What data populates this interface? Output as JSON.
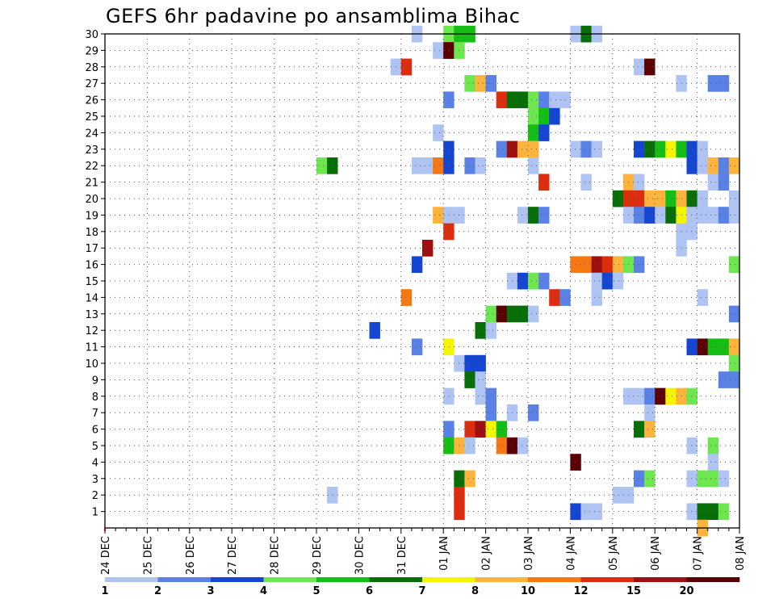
{
  "title": "GEFS 6hr padavine po ansamblima Bihac",
  "chart_data": {
    "type": "heatmap",
    "title": "GEFS 6hr padavine po ansamblima Bihac",
    "x_tick_labels": [
      "24 DEC",
      "25 DEC",
      "26 DEC",
      "27 DEC",
      "28 DEC",
      "29 DEC",
      "30 DEC",
      "31 DEC",
      "01 JAN",
      "02 JAN",
      "03 JAN",
      "04 JAN",
      "05 JAN",
      "06 JAN",
      "07 JAN",
      "08 JAN"
    ],
    "x_step_hours": 6,
    "x_range_steps": [
      0,
      60
    ],
    "y_tick_labels": [
      "1",
      "2",
      "3",
      "4",
      "5",
      "6",
      "7",
      "8",
      "9",
      "10",
      "11",
      "12",
      "13",
      "14",
      "15",
      "16",
      "17",
      "18",
      "19",
      "20",
      "21",
      "22",
      "23",
      "24",
      "25",
      "26",
      "27",
      "28",
      "29",
      "30"
    ],
    "y_range": [
      0,
      30
    ],
    "grid": true,
    "colorbar": {
      "labels": [
        "1",
        "2",
        "3",
        "4",
        "5",
        "6",
        "7",
        "8",
        "10",
        "12",
        "15",
        "20"
      ],
      "colors": [
        "#b0c4f4",
        "#5a82e6",
        "#1446d2",
        "#6ee650",
        "#14be14",
        "#086e08",
        "#f5f500",
        "#fcb43c",
        "#f57814",
        "#dc2e0f",
        "#a00f0f",
        "#5a0000"
      ]
    },
    "cells": [
      [
        29,
        30,
        1
      ],
      [
        32,
        30,
        4
      ],
      [
        33,
        30,
        5
      ],
      [
        34,
        30,
        5
      ],
      [
        44,
        30,
        1
      ],
      [
        45,
        30,
        6
      ],
      [
        46,
        30,
        1
      ],
      [
        31,
        29,
        1
      ],
      [
        32,
        29,
        12
      ],
      [
        33,
        29,
        4
      ],
      [
        27,
        28,
        1
      ],
      [
        28,
        28,
        10
      ],
      [
        50,
        28,
        1
      ],
      [
        51,
        28,
        12
      ],
      [
        34,
        27,
        4
      ],
      [
        35,
        27,
        8
      ],
      [
        36,
        27,
        2
      ],
      [
        54,
        27,
        1
      ],
      [
        57,
        27,
        2
      ],
      [
        58,
        27,
        2
      ],
      [
        32,
        26,
        2
      ],
      [
        37,
        26,
        10
      ],
      [
        38,
        26,
        6
      ],
      [
        39,
        26,
        6
      ],
      [
        40,
        26,
        4
      ],
      [
        41,
        26,
        2
      ],
      [
        42,
        26,
        1
      ],
      [
        43,
        26,
        1
      ],
      [
        40,
        25,
        4
      ],
      [
        41,
        25,
        5
      ],
      [
        42,
        25,
        3
      ],
      [
        40,
        24,
        5
      ],
      [
        41,
        24,
        3
      ],
      [
        31,
        24,
        1
      ],
      [
        32,
        23,
        3
      ],
      [
        37,
        23,
        2
      ],
      [
        38,
        23,
        11
      ],
      [
        39,
        23,
        8
      ],
      [
        40,
        23,
        8
      ],
      [
        44,
        23,
        1
      ],
      [
        45,
        23,
        2
      ],
      [
        46,
        23,
        1
      ],
      [
        50,
        23,
        3
      ],
      [
        51,
        23,
        6
      ],
      [
        52,
        23,
        5
      ],
      [
        53,
        23,
        7
      ],
      [
        54,
        23,
        5
      ],
      [
        55,
        23,
        3
      ],
      [
        56,
        23,
        1
      ],
      [
        20,
        22,
        4
      ],
      [
        21,
        22,
        6
      ],
      [
        29,
        22,
        1
      ],
      [
        30,
        22,
        1
      ],
      [
        31,
        22,
        9
      ],
      [
        32,
        22,
        3
      ],
      [
        34,
        22,
        2
      ],
      [
        35,
        22,
        1
      ],
      [
        40,
        22,
        1
      ],
      [
        55,
        22,
        3
      ],
      [
        56,
        22,
        1
      ],
      [
        57,
        22,
        8
      ],
      [
        58,
        22,
        2
      ],
      [
        59,
        22,
        8
      ],
      [
        41,
        21,
        10
      ],
      [
        45,
        21,
        1
      ],
      [
        49,
        21,
        8
      ],
      [
        50,
        21,
        1
      ],
      [
        57,
        21,
        1
      ],
      [
        58,
        21,
        2
      ],
      [
        48,
        20,
        6
      ],
      [
        49,
        20,
        10
      ],
      [
        50,
        20,
        10
      ],
      [
        51,
        20,
        8
      ],
      [
        52,
        20,
        8
      ],
      [
        53,
        20,
        5
      ],
      [
        54,
        20,
        8
      ],
      [
        55,
        20,
        6
      ],
      [
        56,
        20,
        1
      ],
      [
        59,
        20,
        1
      ],
      [
        31,
        19,
        8
      ],
      [
        32,
        19,
        1
      ],
      [
        33,
        19,
        1
      ],
      [
        39,
        19,
        1
      ],
      [
        40,
        19,
        6
      ],
      [
        41,
        19,
        2
      ],
      [
        49,
        19,
        1
      ],
      [
        50,
        19,
        2
      ],
      [
        51,
        19,
        3
      ],
      [
        52,
        19,
        1
      ],
      [
        53,
        19,
        6
      ],
      [
        54,
        19,
        7
      ],
      [
        55,
        19,
        1
      ],
      [
        56,
        19,
        1
      ],
      [
        57,
        19,
        1
      ],
      [
        58,
        19,
        2
      ],
      [
        59,
        19,
        1
      ],
      [
        32,
        18,
        10
      ],
      [
        54,
        18,
        1
      ],
      [
        55,
        18,
        1
      ],
      [
        30,
        17,
        11
      ],
      [
        54,
        17,
        1
      ],
      [
        29,
        16,
        3
      ],
      [
        44,
        16,
        9
      ],
      [
        45,
        16,
        9
      ],
      [
        46,
        16,
        11
      ],
      [
        47,
        16,
        10
      ],
      [
        48,
        16,
        8
      ],
      [
        49,
        16,
        4
      ],
      [
        50,
        16,
        2
      ],
      [
        59,
        16,
        4
      ],
      [
        38,
        15,
        1
      ],
      [
        39,
        15,
        3
      ],
      [
        40,
        15,
        4
      ],
      [
        41,
        15,
        2
      ],
      [
        46,
        15,
        1
      ],
      [
        47,
        15,
        3
      ],
      [
        48,
        15,
        1
      ],
      [
        28,
        14,
        9
      ],
      [
        42,
        14,
        10
      ],
      [
        43,
        14,
        2
      ],
      [
        46,
        14,
        1
      ],
      [
        56,
        14,
        1
      ],
      [
        36,
        13,
        4
      ],
      [
        37,
        13,
        12
      ],
      [
        38,
        13,
        6
      ],
      [
        39,
        13,
        6
      ],
      [
        40,
        13,
        1
      ],
      [
        59,
        13,
        2
      ],
      [
        25,
        12,
        3
      ],
      [
        35,
        12,
        6
      ],
      [
        36,
        12,
        1
      ],
      [
        29,
        11,
        2
      ],
      [
        32,
        11,
        7
      ],
      [
        55,
        11,
        3
      ],
      [
        56,
        11,
        12
      ],
      [
        57,
        11,
        5
      ],
      [
        58,
        11,
        5
      ],
      [
        59,
        11,
        8
      ],
      [
        33,
        10,
        1
      ],
      [
        34,
        10,
        3
      ],
      [
        35,
        10,
        3
      ],
      [
        59,
        10,
        4
      ],
      [
        34,
        9,
        6
      ],
      [
        35,
        9,
        1
      ],
      [
        58,
        9,
        2
      ],
      [
        59,
        9,
        2
      ],
      [
        32,
        8,
        1
      ],
      [
        35,
        8,
        1
      ],
      [
        36,
        8,
        2
      ],
      [
        49,
        8,
        1
      ],
      [
        50,
        8,
        1
      ],
      [
        51,
        8,
        2
      ],
      [
        52,
        8,
        12
      ],
      [
        53,
        8,
        7
      ],
      [
        54,
        8,
        8
      ],
      [
        55,
        8,
        4
      ],
      [
        36,
        7,
        2
      ],
      [
        38,
        7,
        1
      ],
      [
        40,
        7,
        2
      ],
      [
        51,
        7,
        1
      ],
      [
        32,
        6,
        2
      ],
      [
        34,
        6,
        10
      ],
      [
        35,
        6,
        11
      ],
      [
        36,
        6,
        7
      ],
      [
        37,
        6,
        5
      ],
      [
        50,
        6,
        6
      ],
      [
        51,
        6,
        8
      ],
      [
        32,
        5,
        5
      ],
      [
        33,
        5,
        8
      ],
      [
        34,
        5,
        1
      ],
      [
        37,
        5,
        9
      ],
      [
        38,
        5,
        12
      ],
      [
        39,
        5,
        1
      ],
      [
        55,
        5,
        1
      ],
      [
        57,
        5,
        4
      ],
      [
        44,
        4,
        12
      ],
      [
        57,
        4,
        1
      ],
      [
        33,
        3,
        6
      ],
      [
        34,
        3,
        8
      ],
      [
        50,
        3,
        2
      ],
      [
        51,
        3,
        4
      ],
      [
        55,
        3,
        1
      ],
      [
        56,
        3,
        4
      ],
      [
        57,
        3,
        4
      ],
      [
        58,
        3,
        1
      ],
      [
        21,
        2,
        1
      ],
      [
        33,
        2,
        10
      ],
      [
        48,
        2,
        1
      ],
      [
        49,
        2,
        1
      ],
      [
        33,
        1,
        10
      ],
      [
        44,
        1,
        3
      ],
      [
        45,
        1,
        1
      ],
      [
        46,
        1,
        1
      ],
      [
        55,
        1,
        1
      ],
      [
        56,
        1,
        6
      ],
      [
        57,
        1,
        6
      ],
      [
        58,
        1,
        4
      ],
      [
        56,
        0,
        8
      ]
    ]
  }
}
